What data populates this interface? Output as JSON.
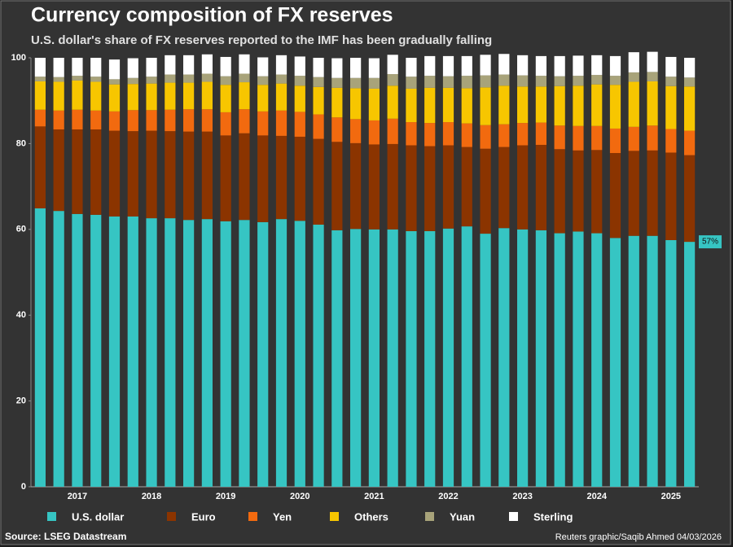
{
  "chart_data": {
    "type": "stacked_bar",
    "title": "Currency composition of FX reserves",
    "subtitle": "U.S. dollar's share of FX reserves reported to the IMF has been gradually falling",
    "source": "Source: LSEG Datastream",
    "credit": "Reuters graphic/Saqib Ahmed 04/03/2026",
    "annotation": "57%",
    "categories": [
      null,
      null,
      "2017",
      null,
      null,
      null,
      "2018",
      null,
      null,
      null,
      "2019",
      null,
      null,
      null,
      "2020",
      null,
      null,
      null,
      "2021",
      null,
      null,
      null,
      "2022",
      null,
      null,
      null,
      "2023",
      null,
      null,
      null,
      "2024",
      null,
      null,
      null,
      "2025",
      null
    ],
    "series": [
      {
        "name": "U.S. dollar",
        "color": "#36c5c3",
        "values": [
          64.9,
          64.3,
          63.6,
          63.4,
          63.0,
          63.0,
          62.6,
          62.6,
          62.2,
          62.4,
          61.9,
          62.2,
          61.7,
          62.4,
          62.0,
          61.1,
          59.8,
          60.1,
          60.0,
          60.0,
          59.6,
          59.6,
          60.2,
          60.7,
          59.0,
          60.3,
          60.0,
          59.8,
          59.1,
          59.5,
          59.1,
          58.0,
          58.5,
          58.5,
          57.5,
          57.1
        ]
      },
      {
        "name": "Euro",
        "color": "#8b3400",
        "values": [
          19.1,
          19.0,
          19.7,
          19.9,
          20.0,
          19.9,
          20.4,
          20.3,
          20.6,
          20.4,
          20.0,
          20.2,
          20.2,
          19.4,
          19.6,
          20.0,
          20.6,
          20.0,
          19.8,
          19.9,
          20.0,
          19.8,
          19.4,
          18.5,
          19.8,
          18.9,
          19.6,
          19.9,
          19.6,
          18.9,
          19.4,
          19.8,
          19.8,
          19.9,
          20.4,
          20.2
        ]
      },
      {
        "name": "Yen",
        "color": "#f26a0f",
        "values": [
          3.9,
          4.4,
          4.6,
          4.4,
          4.5,
          4.9,
          4.8,
          5.0,
          5.2,
          5.2,
          5.4,
          5.6,
          5.6,
          5.9,
          5.8,
          5.7,
          5.7,
          5.6,
          5.6,
          5.9,
          5.4,
          5.4,
          5.4,
          5.5,
          5.5,
          5.3,
          5.2,
          5.2,
          5.5,
          5.7,
          5.6,
          5.7,
          5.6,
          5.8,
          5.5,
          5.7
        ]
      },
      {
        "name": "Others",
        "color": "#f7c600",
        "values": [
          6.6,
          6.7,
          6.8,
          6.7,
          6.3,
          6.1,
          6.2,
          6.3,
          6.2,
          6.4,
          6.4,
          6.3,
          6.2,
          6.3,
          6.1,
          6.4,
          6.9,
          7.2,
          7.4,
          7.7,
          7.8,
          8.2,
          8.0,
          8.2,
          8.8,
          9.0,
          8.5,
          8.4,
          9.2,
          9.4,
          9.7,
          10.2,
          10.5,
          10.3,
          10.0,
          10.3
        ]
      },
      {
        "name": "Yuan",
        "color": "#a8a37a",
        "values": [
          1.1,
          1.1,
          1.1,
          1.2,
          1.2,
          1.4,
          1.6,
          1.9,
          1.9,
          1.9,
          2.0,
          2.0,
          2.0,
          2.1,
          2.3,
          2.3,
          2.3,
          2.4,
          2.5,
          2.7,
          2.8,
          2.8,
          2.7,
          2.9,
          2.8,
          2.6,
          2.6,
          2.5,
          2.3,
          2.3,
          2.2,
          2.1,
          2.2,
          2.2,
          2.2,
          2.1
        ]
      },
      {
        "name": "Sterling",
        "color": "#ffffff",
        "values": [
          4.4,
          4.5,
          4.2,
          4.4,
          4.6,
          4.6,
          4.4,
          4.5,
          4.5,
          4.5,
          4.5,
          4.5,
          4.4,
          4.5,
          4.5,
          4.5,
          4.6,
          4.7,
          4.6,
          4.5,
          4.4,
          4.6,
          4.7,
          4.6,
          4.8,
          4.8,
          4.7,
          4.6,
          4.7,
          4.7,
          4.6,
          4.6,
          4.7,
          4.7,
          4.6,
          4.6
        ]
      }
    ],
    "ylim": [
      0,
      100
    ],
    "yticks": [
      0,
      20,
      40,
      60,
      80,
      100
    ],
    "grid": false
  }
}
